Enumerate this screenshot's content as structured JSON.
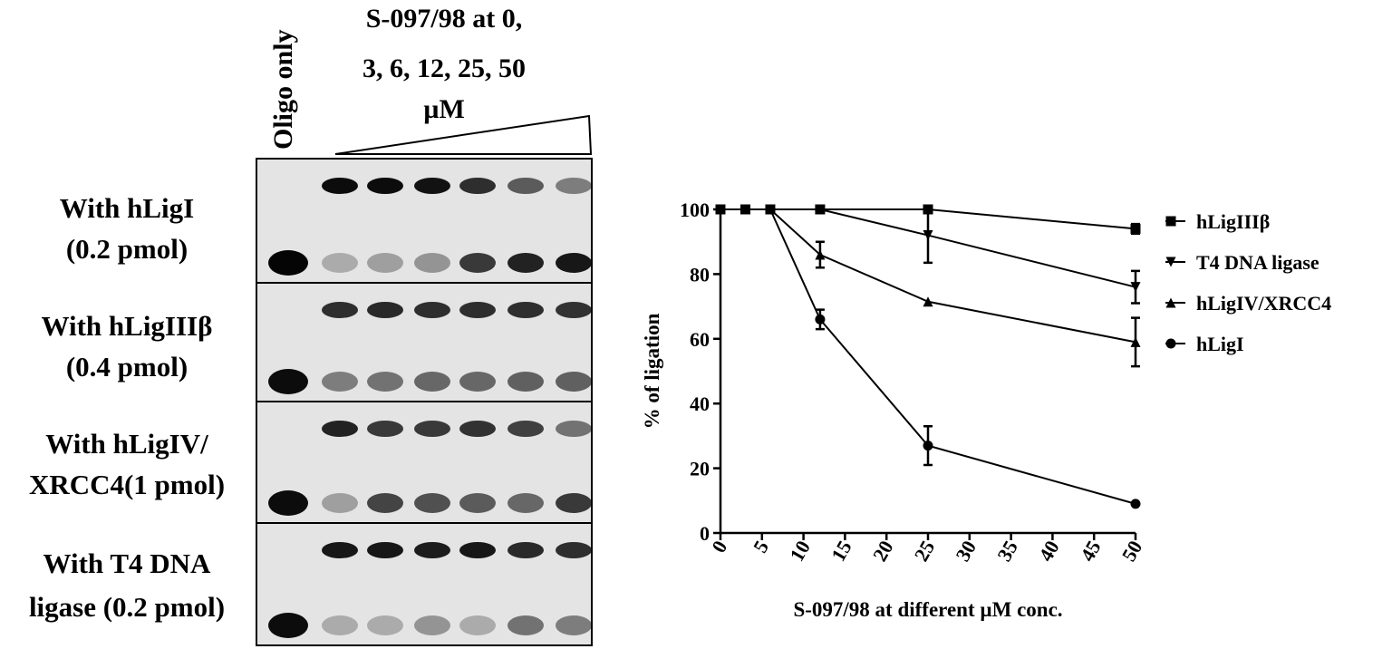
{
  "gel": {
    "lane_label": "Oligo only",
    "treatment_label": [
      "S-097/98 at 0,",
      "3, 6,  12, 25, 50",
      "µM"
    ],
    "rows": [
      [
        "With hLigI",
        "(0.2 pmol)"
      ],
      [
        "With hLigIIIβ",
        "(0.4 pmol)"
      ],
      [
        "With hLigIV/",
        "XRCC4(1 pmol)"
      ],
      [
        "With T4 DNA",
        "ligase (0.2 pmol)"
      ]
    ]
  },
  "chart_data": {
    "type": "line",
    "xlabel": "S-097/98 at different µM conc.",
    "ylabel": "% of ligation",
    "x": [
      0,
      3,
      6,
      12,
      25,
      50
    ],
    "xlim": [
      0,
      50
    ],
    "xticks": [
      0,
      5,
      10,
      15,
      20,
      25,
      30,
      35,
      40,
      45,
      50
    ],
    "ylim": [
      0,
      100
    ],
    "yticks": [
      0,
      20,
      40,
      60,
      80,
      100
    ],
    "series": [
      {
        "name": "hLigIIIβ",
        "color": "#000000",
        "marker": "square",
        "values": [
          100,
          100,
          100,
          100,
          100,
          94
        ],
        "errors": [
          null,
          null,
          null,
          null,
          null,
          1.5
        ]
      },
      {
        "name": "T4 DNA ligase",
        "color": "#000000",
        "marker": "triangle-down",
        "values": [
          100,
          100,
          100,
          100,
          92,
          76
        ],
        "errors": [
          null,
          null,
          null,
          null,
          8.5,
          5
        ]
      },
      {
        "name": "hLigIV/XRCC4",
        "color": "#000000",
        "marker": "triangle-up",
        "values": [
          100,
          100,
          100,
          86,
          71.5,
          59
        ],
        "errors": [
          null,
          null,
          null,
          4,
          null,
          7.5
        ]
      },
      {
        "name": "hLigI",
        "color": "#000000",
        "marker": "circle",
        "values": [
          100,
          100,
          100,
          66,
          27,
          9
        ],
        "errors": [
          null,
          null,
          null,
          3,
          6,
          null
        ]
      }
    ]
  }
}
